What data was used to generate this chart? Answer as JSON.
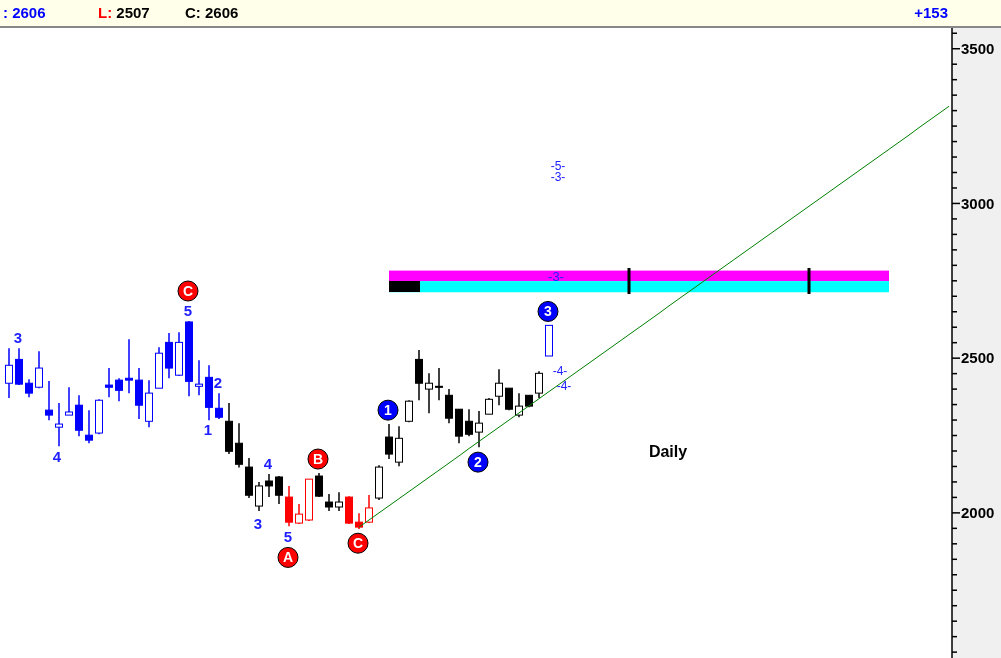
{
  "chart_data": {
    "type": "candlestick",
    "categories": [
      null,
      null,
      null,
      null,
      null,
      null,
      null,
      null,
      null,
      null,
      null,
      null,
      null,
      null,
      null,
      null,
      null,
      null,
      null,
      null,
      null,
      null,
      null,
      null,
      null,
      null,
      null,
      null,
      null,
      null,
      null,
      null,
      null,
      null,
      null,
      null,
      null,
      null,
      null,
      null,
      null,
      null,
      null,
      null,
      null,
      null,
      null,
      null,
      null,
      null,
      null,
      null,
      null,
      null,
      null,
      null,
      null,
      null,
      null,
      null,
      null,
      null,
      null,
      null,
      null,
      null,
      null,
      null,
      null,
      null,
      null,
      null,
      null,
      null,
      null,
      null,
      null,
      null,
      null,
      null,
      null,
      null,
      null,
      null,
      null,
      null,
      null,
      null,
      null,
      null,
      null,
      null,
      null,
      null,
      null
    ],
    "ohlc": [
      [
        2419,
        2532,
        2371,
        2477
      ],
      [
        2496,
        2532,
        2413,
        2416
      ],
      [
        2419,
        2432,
        2374,
        2387
      ],
      [
        2406,
        2522,
        2403,
        2468
      ],
      [
        2332,
        2426,
        2299,
        2316
      ],
      [
        2277,
        2355,
        2215,
        2287
      ],
      [
        2316,
        2406,
        2316,
        2326
      ],
      [
        2348,
        2380,
        2248,
        2267
      ],
      [
        2251,
        2332,
        2225,
        2235
      ],
      [
        2258,
        2367,
        2254,
        2364
      ],
      [
        2413,
        2468,
        2374,
        2406
      ],
      [
        2429,
        2435,
        2361,
        2396
      ],
      [
        2435,
        2561,
        2387,
        2429
      ],
      [
        2429,
        2468,
        2303,
        2348
      ],
      [
        2296,
        2429,
        2277,
        2387
      ],
      [
        2403,
        2535,
        2403,
        2516
      ],
      [
        2551,
        2581,
        2435,
        2468
      ],
      [
        2445,
        2584,
        2442,
        2551
      ],
      [
        2617,
        2620,
        2377,
        2425
      ],
      [
        2409,
        2493,
        2380,
        2416
      ],
      [
        2438,
        2477,
        2299,
        2341
      ],
      [
        2338,
        2387,
        2303,
        2309
      ],
      [
        2296,
        2355,
        2190,
        2199
      ],
      [
        2225,
        2290,
        2147,
        2157
      ],
      [
        2148,
        2177,
        2048,
        2057
      ],
      [
        2022,
        2100,
        2006,
        2087
      ],
      [
        2103,
        2126,
        2051,
        2087
      ],
      [
        2116,
        2119,
        2029,
        2057
      ],
      [
        2051,
        2087,
        1957,
        1970
      ],
      [
        1967,
        2029,
        1964,
        1996
      ],
      [
        1977,
        2109,
        1974,
        2109
      ],
      [
        2119,
        2129,
        2051,
        2054
      ],
      [
        2035,
        2061,
        2006,
        2019
      ],
      [
        2019,
        2067,
        2006,
        2035
      ],
      [
        2051,
        2054,
        1964,
        1967
      ],
      [
        1970,
        1999,
        1948,
        1954
      ],
      [
        1970,
        2058,
        1967,
        2016
      ],
      [
        2048,
        2154,
        2042,
        2148
      ],
      [
        2245,
        2287,
        2174,
        2190
      ],
      [
        2164,
        2280,
        2151,
        2241
      ],
      [
        2296,
        2364,
        2293,
        2361
      ],
      [
        2496,
        2526,
        2364,
        2419
      ],
      [
        2400,
        2451,
        2322,
        2419
      ],
      [
        2409,
        2468,
        2364,
        2406
      ],
      [
        2380,
        2400,
        2290,
        2306
      ],
      [
        2335,
        2335,
        2225,
        2248
      ],
      [
        2296,
        2335,
        2248,
        2254
      ],
      [
        2261,
        2329,
        2212,
        2290
      ],
      [
        2319,
        2371,
        2319,
        2367
      ],
      [
        2377,
        2464,
        2348,
        2419
      ],
      [
        2403,
        2403,
        2332,
        2335
      ],
      [
        2316,
        2387,
        2309,
        2345
      ],
      [
        2380,
        2380,
        2341,
        2345
      ],
      [
        2387,
        2458,
        2371,
        2451
      ],
      [
        2507,
        2606,
        2507,
        2606
      ],
      null,
      null,
      null,
      null,
      null,
      null,
      null,
      null,
      null,
      null,
      null,
      null,
      null,
      null,
      null,
      null,
      null,
      null,
      null,
      null,
      null,
      null,
      null,
      null,
      null,
      null,
      null,
      null,
      null,
      null,
      null,
      null,
      null,
      null,
      null,
      null,
      null,
      null,
      null,
      null
    ],
    "colors": [
      "#0000ff",
      "#0000ff",
      "#0000ff",
      "#0000ff",
      "#0000ff",
      "#0000ff",
      "#0000ff",
      "#0000ff",
      "#0000ff",
      "#0000ff",
      "#0000ff",
      "#0000ff",
      "#0000ff",
      "#0000ff",
      "#0000ff",
      "#0000ff",
      "#0000ff",
      "#0000ff",
      "#0000ff",
      "#0000ff",
      "#0000ff",
      "#0000ff",
      "#000000",
      "#000000",
      "#000000",
      "#000000",
      "#000000",
      "#000000",
      "#ff0000",
      "#ff0000",
      "#ff0000",
      "#000000",
      "#000000",
      "#000000",
      "#ff0000",
      "#ff0000",
      "#ff0000",
      "#000000",
      "#000000",
      "#000000",
      "#000000",
      "#000000",
      "#000000",
      "#000000",
      "#000000",
      "#000000",
      "#000000",
      "#000000",
      "#000000",
      "#000000",
      "#000000",
      "#000000",
      "#000000",
      "#000000",
      "#0000ff",
      null,
      null,
      null,
      null,
      null,
      null,
      null,
      null,
      null,
      null,
      null,
      null,
      null,
      null,
      null,
      null,
      null,
      null,
      null,
      null,
      null,
      null,
      null,
      null,
      null,
      null,
      null,
      null,
      null,
      null,
      null,
      null,
      null,
      null,
      null,
      null,
      null,
      null,
      null,
      null
    ],
    "series": [
      {
        "type": "line",
        "color": "#008000",
        "values": [
          null,
          null,
          null,
          null,
          null,
          null,
          null,
          null,
          null,
          null,
          null,
          null,
          null,
          null,
          null,
          null,
          null,
          null,
          null,
          null,
          null,
          null,
          null,
          null,
          null,
          null,
          null,
          null,
          null,
          null,
          null,
          null,
          null,
          null,
          null,
          1954,
          1977,
          2000,
          2023,
          2046,
          2069,
          2092,
          2115,
          2138,
          2161,
          2184,
          2208,
          2231,
          2254,
          2277,
          2300,
          2323,
          2346,
          2369,
          2392,
          2415,
          2438,
          2461,
          2484,
          2507,
          2530,
          2553,
          2576,
          2599,
          2622,
          2645,
          2669,
          2692,
          2715,
          2738,
          2761,
          2784,
          2807,
          2830,
          2853,
          2876,
          2899,
          2922,
          2945,
          2968,
          2991,
          3014,
          3037,
          3060,
          3083,
          3106,
          3129,
          3152,
          3175,
          3198,
          3221,
          3245,
          3268,
          3291,
          3314
        ]
      }
    ],
    "ylim": [
      1531,
      3567
    ],
    "yticks": [
      {
        "value": 1550,
        "label": null
      },
      {
        "value": 1600,
        "label": null
      },
      {
        "value": 1650,
        "label": null
      },
      {
        "value": 1700,
        "label": null
      },
      {
        "value": 1750,
        "label": null
      },
      {
        "value": 1800,
        "label": null
      },
      {
        "value": 1850,
        "label": null
      },
      {
        "value": 1900,
        "label": null
      },
      {
        "value": 1950,
        "label": null
      },
      2000,
      {
        "value": 2050,
        "label": null
      },
      {
        "value": 2100,
        "label": null
      },
      {
        "value": 2150,
        "label": null
      },
      {
        "value": 2200,
        "label": null
      },
      {
        "value": 2250,
        "label": null
      },
      {
        "value": 2300,
        "label": null
      },
      {
        "value": 2350,
        "label": null
      },
      {
        "value": 2400,
        "label": null
      },
      {
        "value": 2450,
        "label": null
      },
      2500,
      {
        "value": 2550,
        "label": null
      },
      {
        "value": 2600,
        "label": null
      },
      {
        "value": 2650,
        "label": null
      },
      {
        "value": 2700,
        "label": null
      },
      {
        "value": 2750,
        "label": null
      },
      {
        "value": 2800,
        "label": null
      },
      {
        "value": 2850,
        "label": null
      },
      {
        "value": 2900,
        "label": null
      },
      {
        "value": 2950,
        "label": null
      },
      3000,
      {
        "value": 3050,
        "label": null
      },
      {
        "value": 3100,
        "label": null
      },
      {
        "value": 3150,
        "label": null
      },
      {
        "value": 3200,
        "label": null
      },
      {
        "value": 3250,
        "label": null
      },
      {
        "value": 3300,
        "label": null
      },
      {
        "value": 3350,
        "label": null
      },
      {
        "value": 3400,
        "label": null
      },
      {
        "value": 3450,
        "label": null
      },
      3500,
      {
        "value": 3550,
        "label": null
      }
    ],
    "tick_labels": "y",
    "bands": [
      {
        "axis": "y",
        "from": 2749,
        "to": 2783,
        "color": "#ff00ff"
      },
      {
        "axis": "y",
        "from": 2713,
        "to": 2749,
        "color": "#00ffff"
      }
    ],
    "annotations": [
      ": 2606",
      "L: 2507",
      "C: 2606",
      "+153",
      "Daily",
      "3",
      "4",
      "5",
      "2",
      "1",
      "4",
      "3",
      "5",
      "-4-",
      "-4-",
      "-5-",
      "-3-",
      {
        "text": "-3-",
        "y": 2763
      },
      {
        "text": "C",
        "y": 2717
      },
      {
        "text": "A",
        "y": 1856
      },
      {
        "text": "B",
        "y": 2174
      },
      {
        "text": "C",
        "y": 1902
      },
      {
        "text": "1",
        "y": 2332
      },
      {
        "text": "2",
        "y": 2164
      },
      {
        "text": "3",
        "y": 2651
      }
    ]
  }
}
